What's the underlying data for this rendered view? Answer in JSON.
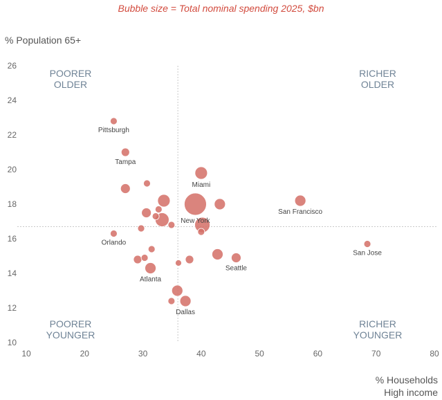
{
  "subtitle": "Bubble size = Total nominal spending 2025, $bn",
  "ylabel": "% Population 65+",
  "xlabel_line1": "% Households",
  "xlabel_line2": "High income",
  "quadrants": {
    "top_left": [
      "POORER",
      "OLDER"
    ],
    "top_right": [
      "RICHER",
      "OLDER"
    ],
    "bottom_left": [
      "POORER",
      "YOUNGER"
    ],
    "bottom_right": [
      "RICHER",
      "YOUNGER"
    ]
  },
  "colors": {
    "bubble": "#d36f66",
    "title": "#d24b3e",
    "quadrant": "#6f8396",
    "refline": "#c8c8c8"
  },
  "chart_data": {
    "type": "scatter",
    "xlim": [
      10,
      80
    ],
    "ylim": [
      10,
      26
    ],
    "xticks": [
      10,
      20,
      30,
      40,
      50,
      60,
      70,
      80
    ],
    "yticks": [
      10,
      12,
      14,
      16,
      18,
      20,
      22,
      24,
      26
    ],
    "ref_x": 36,
    "ref_y": 16.7,
    "grid": false,
    "points": [
      {
        "name": "Pittsburgh",
        "x": 25,
        "y": 22.8,
        "size": 5
      },
      {
        "name": "Tampa",
        "x": 27,
        "y": 21,
        "size": 6
      },
      {
        "name": "",
        "x": 30.7,
        "y": 19.2,
        "size": 5
      },
      {
        "name": "",
        "x": 27,
        "y": 18.9,
        "size": 7
      },
      {
        "name": "Miami",
        "x": 40,
        "y": 19.8,
        "size": 9
      },
      {
        "name": "",
        "x": 33.6,
        "y": 18.2,
        "size": 9
      },
      {
        "name": "New York",
        "x": 39,
        "y": 18,
        "size": 16
      },
      {
        "name": "",
        "x": 43.2,
        "y": 18,
        "size": 8
      },
      {
        "name": "San Francisco",
        "x": 57,
        "y": 18.2,
        "size": 8
      },
      {
        "name": "",
        "x": 30.6,
        "y": 17.5,
        "size": 7
      },
      {
        "name": "",
        "x": 32.7,
        "y": 17.7,
        "size": 5
      },
      {
        "name": "",
        "x": 32.2,
        "y": 17.3,
        "size": 5
      },
      {
        "name": "",
        "x": 33.3,
        "y": 17.1,
        "size": 10
      },
      {
        "name": "",
        "x": 34.9,
        "y": 16.8,
        "size": 5
      },
      {
        "name": "",
        "x": 40.2,
        "y": 16.8,
        "size": 11
      },
      {
        "name": "",
        "x": 29.7,
        "y": 16.6,
        "size": 5
      },
      {
        "name": "",
        "x": 40,
        "y": 16.4,
        "size": 5
      },
      {
        "name": "Orlando",
        "x": 25,
        "y": 16.3,
        "size": 5
      },
      {
        "name": "San Jose",
        "x": 68.5,
        "y": 15.7,
        "size": 5
      },
      {
        "name": "",
        "x": 31.5,
        "y": 15.4,
        "size": 5
      },
      {
        "name": "",
        "x": 42.8,
        "y": 15.1,
        "size": 8
      },
      {
        "name": "Seattle",
        "x": 46,
        "y": 14.9,
        "size": 7
      },
      {
        "name": "",
        "x": 29.1,
        "y": 14.8,
        "size": 6
      },
      {
        "name": "",
        "x": 30.3,
        "y": 14.9,
        "size": 5
      },
      {
        "name": "",
        "x": 38,
        "y": 14.8,
        "size": 6
      },
      {
        "name": "",
        "x": 36.1,
        "y": 14.6,
        "size": 4.5
      },
      {
        "name": "Atlanta",
        "x": 31.3,
        "y": 14.3,
        "size": 8
      },
      {
        "name": "",
        "x": 35.9,
        "y": 13,
        "size": 8
      },
      {
        "name": "",
        "x": 34.9,
        "y": 12.4,
        "size": 5
      },
      {
        "name": "Dallas",
        "x": 37.3,
        "y": 12.4,
        "size": 8
      }
    ]
  }
}
